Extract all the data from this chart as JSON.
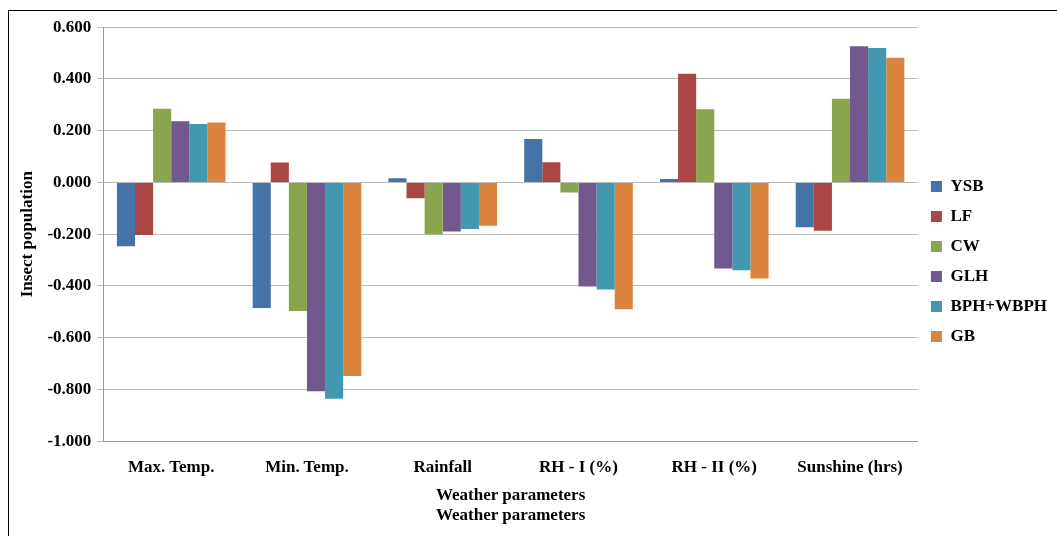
{
  "chart_data": {
    "type": "bar",
    "xlabel": "Weather parameters",
    "ylabel": "Insect population",
    "annotations": [
      "Weather parameters"
    ],
    "categories": [
      "Max. Temp.",
      "Min. Temp.",
      "Rainfall",
      "RH - I (%)",
      "RH - II (%)",
      "Sunshine (hrs)"
    ],
    "series": [
      {
        "name": "YSB",
        "color": "#4572a7",
        "values": [
          -0.247,
          -0.485,
          0.016,
          0.168,
          0.013,
          -0.173
        ]
      },
      {
        "name": "LF",
        "color": "#aa4643",
        "values": [
          -0.203,
          0.077,
          -0.061,
          0.078,
          0.42,
          -0.187
        ]
      },
      {
        "name": "CW",
        "color": "#89a54e",
        "values": [
          0.285,
          -0.497,
          -0.2,
          -0.039,
          0.283,
          0.323
        ]
      },
      {
        "name": "GLH",
        "color": "#71588f",
        "values": [
          0.237,
          -0.807,
          -0.19,
          -0.402,
          -0.333,
          0.526
        ]
      },
      {
        "name": "BPH+WBPH",
        "color": "#4198af",
        "values": [
          0.226,
          -0.836,
          -0.18,
          -0.414,
          -0.339,
          0.52
        ]
      },
      {
        "name": "GB",
        "color": "#db843d",
        "values": [
          0.232,
          -0.748,
          -0.167,
          -0.49,
          -0.371,
          0.482
        ]
      }
    ],
    "ylim": [
      -1,
      0.6
    ],
    "yticks": [
      {
        "value": -1,
        "label": "-1.000"
      },
      {
        "value": -0.8,
        "label": "-0.800"
      },
      {
        "value": -0.6,
        "label": "-0.600"
      },
      {
        "value": -0.4,
        "label": "-0.400"
      },
      {
        "value": -0.2,
        "label": "-0.200"
      },
      {
        "value": 0,
        "label": "0.000"
      },
      {
        "value": 0.2,
        "label": "0.200"
      },
      {
        "value": 0.4,
        "label": "0.400"
      },
      {
        "value": 0.6,
        "label": "0.600"
      }
    ],
    "grid": "y",
    "legend": "right"
  }
}
